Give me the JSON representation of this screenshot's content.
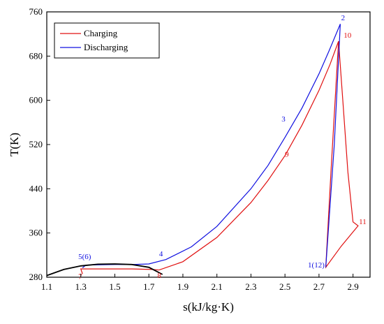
{
  "chart_data": {
    "type": "line",
    "xlabel": "s(kJ/kg·K)",
    "ylabel": "T(K)",
    "xlim": [
      1.1,
      3.0
    ],
    "ylim": [
      280,
      760
    ],
    "xticks": [
      1.1,
      1.3,
      1.5,
      1.7,
      1.9,
      2.1,
      2.3,
      2.5,
      2.7,
      2.9
    ],
    "yticks": [
      280,
      360,
      440,
      520,
      600,
      680,
      760
    ],
    "grid": false,
    "legend_position": "top-left",
    "series": [
      {
        "name": "Charging",
        "color": "#e01010",
        "points": [
          [
            1.31,
            286
          ],
          [
            1.3,
            295
          ],
          [
            1.45,
            295
          ],
          [
            1.6,
            295
          ],
          [
            1.72,
            294
          ],
          [
            1.76,
            293
          ],
          [
            1.9,
            308
          ],
          [
            2.1,
            352
          ],
          [
            2.3,
            415
          ],
          [
            2.4,
            455
          ],
          [
            2.5,
            500
          ],
          [
            2.6,
            555
          ],
          [
            2.7,
            618
          ],
          [
            2.765,
            665
          ],
          [
            2.815,
            707
          ],
          [
            2.84,
            600
          ],
          [
            2.87,
            470
          ],
          [
            2.9,
            380
          ],
          [
            2.93,
            373
          ],
          [
            2.83,
            336
          ],
          [
            2.74,
            298
          ],
          [
            2.77,
            470
          ],
          [
            2.815,
            707
          ]
        ]
      },
      {
        "name": "Discharging",
        "color": "#1010e0",
        "points": [
          [
            1.31,
            297
          ],
          [
            1.33,
            302
          ],
          [
            1.5,
            303
          ],
          [
            1.6,
            303
          ],
          [
            1.7,
            304
          ],
          [
            1.8,
            312
          ],
          [
            1.95,
            335
          ],
          [
            2.1,
            372
          ],
          [
            2.3,
            440
          ],
          [
            2.4,
            482
          ],
          [
            2.5,
            533
          ],
          [
            2.6,
            586
          ],
          [
            2.7,
            648
          ],
          [
            2.76,
            690
          ],
          [
            2.825,
            738
          ],
          [
            2.79,
            520
          ],
          [
            2.74,
            298
          ]
        ]
      },
      {
        "color": "#000000",
        "points": [
          [
            1.1,
            283
          ],
          [
            1.2,
            294
          ],
          [
            1.3,
            300.5
          ],
          [
            1.4,
            303.5
          ],
          [
            1.5,
            304
          ],
          [
            1.6,
            303
          ],
          [
            1.7,
            298
          ],
          [
            1.78,
            285
          ]
        ]
      }
    ],
    "annotations": [
      {
        "text": "2",
        "x": 2.83,
        "y": 745,
        "color": "#1010e0"
      },
      {
        "text": "10",
        "x": 2.845,
        "y": 713,
        "color": "#e01010"
      },
      {
        "text": "3",
        "x": 2.48,
        "y": 562,
        "color": "#1010e0"
      },
      {
        "text": "9",
        "x": 2.5,
        "y": 498,
        "color": "#e01010"
      },
      {
        "text": "11",
        "x": 2.935,
        "y": 376,
        "color": "#e01010"
      },
      {
        "text": "1(12)",
        "x": 2.635,
        "y": 298,
        "color": "#1010e0"
      },
      {
        "text": "4",
        "x": 1.76,
        "y": 318,
        "color": "#1010e0"
      },
      {
        "text": "5(6)",
        "x": 1.285,
        "y": 313,
        "color": "#1010e0"
      },
      {
        "text": "7",
        "x": 1.285,
        "y": 277,
        "color": "#e01010"
      },
      {
        "text": "8",
        "x": 1.75,
        "y": 279,
        "color": "#e01010"
      }
    ]
  }
}
